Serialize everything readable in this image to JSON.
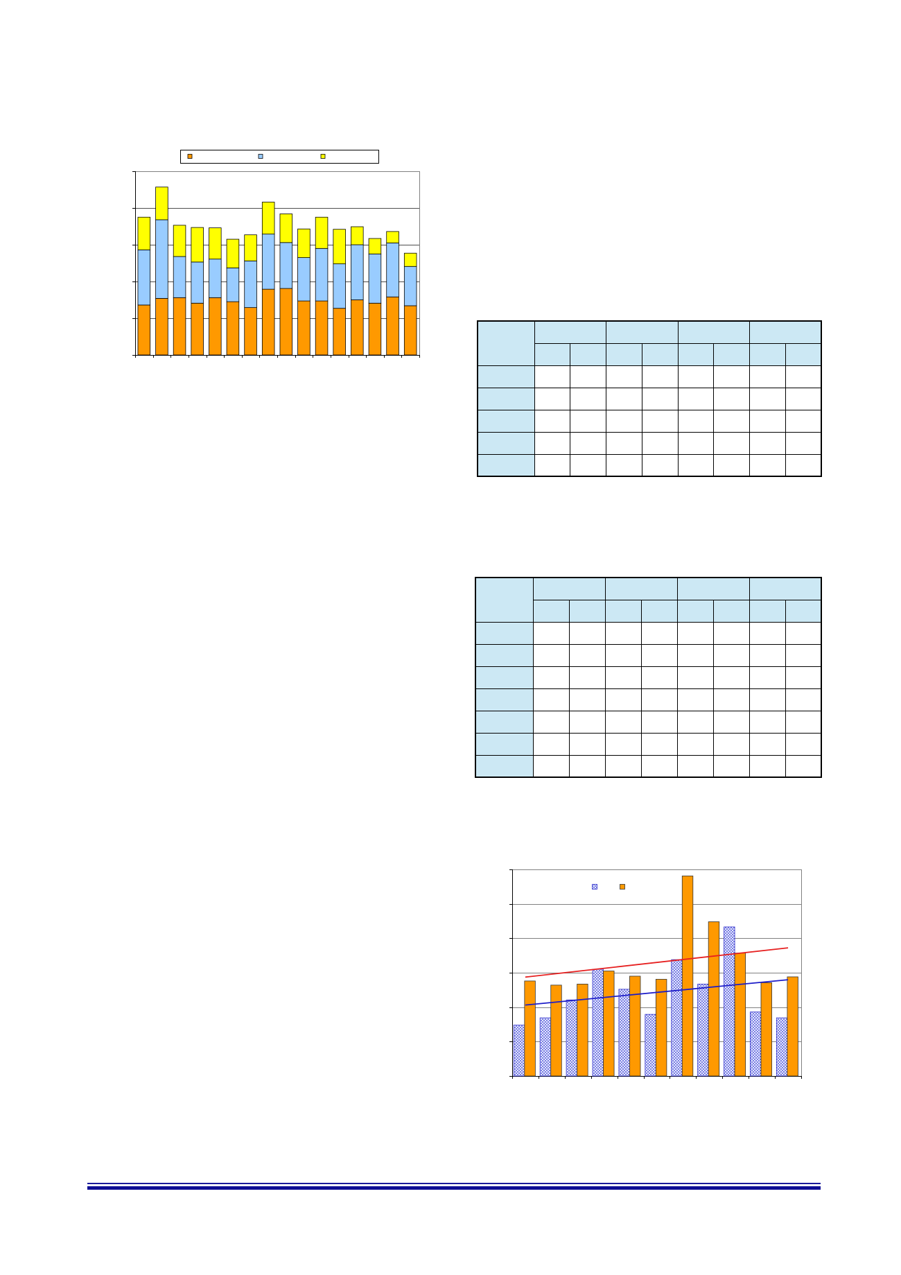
{
  "colors": {
    "table_header_fill": "#cce8f4",
    "footer_rule": "#1a1a9a"
  },
  "chart_data": [
    {
      "type": "bar",
      "stacked": true,
      "title": "",
      "xlabel": "",
      "ylabel": "",
      "ylim": [
        0,
        5
      ],
      "grid": true,
      "legend": "top",
      "series": [
        {
          "color": "#ff9900",
          "values": [
            1.36,
            1.54,
            1.56,
            1.41,
            1.56,
            1.45,
            1.29,
            1.79,
            1.81,
            1.47,
            1.47,
            1.27,
            1.5,
            1.41,
            1.58,
            1.34
          ]
        },
        {
          "color": "#99ccff",
          "values": [
            1.5,
            2.14,
            1.12,
            1.12,
            1.05,
            0.92,
            1.27,
            1.5,
            1.25,
            1.18,
            1.43,
            1.21,
            1.5,
            1.34,
            1.47,
            1.07
          ]
        },
        {
          "color": "#ffff00",
          "values": [
            0.89,
            0.89,
            0.85,
            0.94,
            0.85,
            0.78,
            0.71,
            0.87,
            0.78,
            0.78,
            0.85,
            0.94,
            0.49,
            0.42,
            0.31,
            0.36
          ]
        }
      ]
    },
    {
      "type": "bar",
      "stacked": false,
      "title": "",
      "xlabel": "",
      "ylabel": "",
      "ylim": [
        0,
        6
      ],
      "grid": true,
      "legend": "top",
      "trendline": "linear",
      "series": [
        {
          "color": "#3333cc",
          "pattern": "dots",
          "trendline_color": "#1c1cc8",
          "values": [
            1.48,
            1.69,
            2.21,
            3.1,
            2.52,
            1.79,
            3.38,
            2.67,
            4.33,
            1.86,
            1.69
          ]
        },
        {
          "color": "#ff9900",
          "trendline_color": "#e62020",
          "values": [
            2.76,
            2.64,
            2.67,
            3.05,
            2.9,
            2.81,
            5.81,
            4.48,
            3.57,
            2.71,
            2.88
          ]
        }
      ]
    }
  ],
  "tables": [
    {
      "corner": "",
      "group_headers": [
        "",
        "",
        "",
        ""
      ],
      "sub_headers": [
        "",
        "",
        "",
        "",
        "",
        "",
        "",
        ""
      ],
      "row_headers": [
        "",
        "",
        "",
        "",
        ""
      ],
      "cells": [
        [
          "",
          "",
          "",
          "",
          "",
          "",
          "",
          ""
        ],
        [
          "",
          "",
          "",
          "",
          "",
          "",
          "",
          ""
        ],
        [
          "",
          "",
          "",
          "",
          "",
          "",
          "",
          ""
        ],
        [
          "",
          "",
          "",
          "",
          "",
          "",
          "",
          ""
        ],
        [
          "",
          "",
          "",
          "",
          "",
          "",
          "",
          ""
        ]
      ]
    },
    {
      "corner": "",
      "group_headers": [
        "",
        "",
        "",
        ""
      ],
      "sub_headers": [
        "",
        "",
        "",
        "",
        "",
        "",
        "",
        ""
      ],
      "row_headers": [
        "",
        "",
        "",
        "",
        "",
        "",
        ""
      ],
      "cells": [
        [
          "",
          "",
          "",
          "",
          "",
          "",
          "",
          ""
        ],
        [
          "",
          "",
          "",
          "",
          "",
          "",
          "",
          ""
        ],
        [
          "",
          "",
          "",
          "",
          "",
          "",
          "",
          ""
        ],
        [
          "",
          "",
          "",
          "",
          "",
          "",
          "",
          ""
        ],
        [
          "",
          "",
          "",
          "",
          "",
          "",
          "",
          ""
        ],
        [
          "",
          "",
          "",
          "",
          "",
          "",
          "",
          ""
        ],
        [
          "",
          "",
          "",
          "",
          "",
          "",
          "",
          ""
        ]
      ]
    }
  ]
}
